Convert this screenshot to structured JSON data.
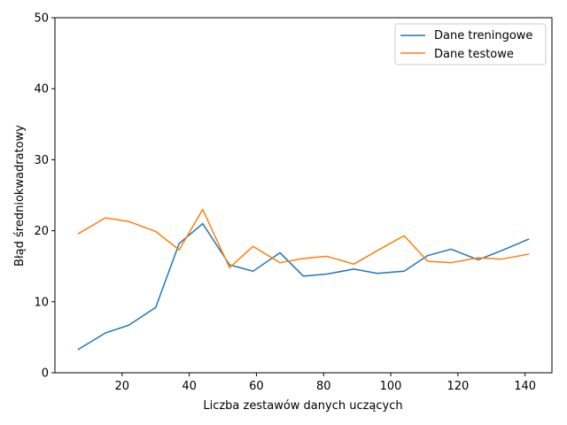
{
  "chart_data": {
    "type": "line",
    "title": "",
    "xlabel": "Liczba zestawów danych uczących",
    "ylabel": "Błąd średniokwadratowy",
    "xlim": [
      0,
      148
    ],
    "ylim": [
      0,
      50
    ],
    "xticks": [
      20,
      40,
      60,
      80,
      100,
      120,
      140
    ],
    "yticks": [
      0,
      10,
      20,
      30,
      40,
      50
    ],
    "grid": false,
    "legend_position": "top-right",
    "x": [
      7,
      15,
      22,
      30,
      37,
      44,
      52,
      59,
      67,
      74,
      81,
      89,
      96,
      104,
      111,
      118,
      126,
      133,
      141
    ],
    "series": [
      {
        "name": "Dane treningowe",
        "color": "#1f77b4",
        "values": [
          3.3,
          5.6,
          6.7,
          9.2,
          18.2,
          21.0,
          15.2,
          14.3,
          16.9,
          13.6,
          13.9,
          14.6,
          14.0,
          14.3,
          16.5,
          17.4,
          15.9,
          17.2,
          18.8
        ]
      },
      {
        "name": "Dane testowe",
        "color": "#ff7f0e",
        "values": [
          19.6,
          21.8,
          21.3,
          19.9,
          17.3,
          23.0,
          14.8,
          17.8,
          15.5,
          16.1,
          16.4,
          15.3,
          17.2,
          19.3,
          15.7,
          15.5,
          16.2,
          16.0,
          16.7
        ]
      }
    ]
  }
}
